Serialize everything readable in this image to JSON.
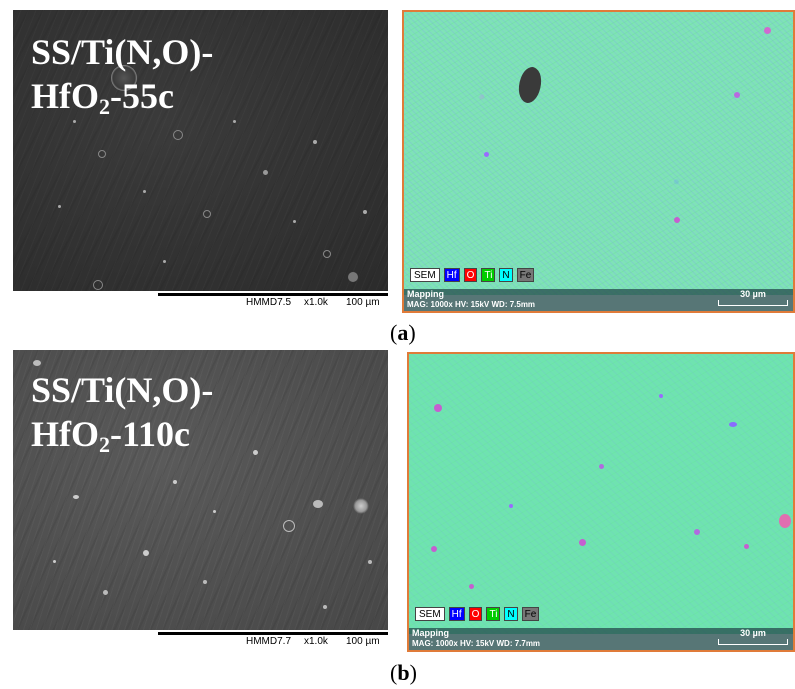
{
  "panel_a": {
    "sem": {
      "title_line1": "SS/Ti(N,O)-",
      "title_line2_pre": "HfO",
      "title_line2_sub": "2",
      "title_line2_post": "-55c",
      "footer_id": "HMMD7.5",
      "footer_mag": "x1.0k",
      "footer_scale": "100 µm"
    },
    "eds": {
      "legend": [
        "SEM",
        "Hf",
        "O",
        "Ti",
        "N",
        "Fe"
      ],
      "mode": "Mapping",
      "info": "MAG: 1000x   HV: 15kV   WD: 7.5mm",
      "scale": "30 µm"
    },
    "caption_letter": "a"
  },
  "panel_b": {
    "sem": {
      "title_line1": "SS/Ti(N,O)-",
      "title_line2_pre": "HfO",
      "title_line2_sub": "2",
      "title_line2_post": "-110c",
      "footer_id": "HMMD7.7",
      "footer_mag": "x1.0k",
      "footer_scale": "100 µm"
    },
    "eds": {
      "legend": [
        "SEM",
        "Hf",
        "O",
        "Ti",
        "N",
        "Fe"
      ],
      "mode": "Mapping",
      "info": "MAG: 1000x   HV: 15kV   WD: 7.7mm",
      "scale": "30 µm"
    },
    "caption_letter": "b"
  }
}
